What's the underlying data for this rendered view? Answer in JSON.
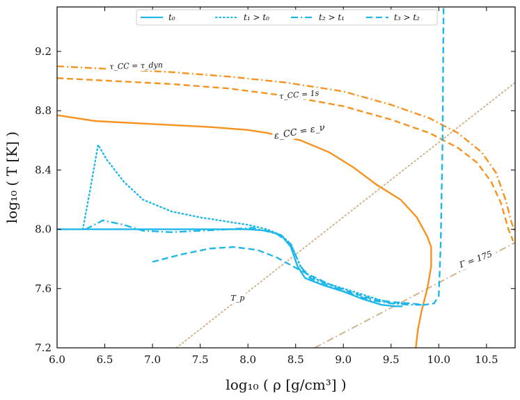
{
  "chart_data": {
    "type": "line",
    "title": "",
    "xlabel": "log₁₀ ( ρ [g/cm³] )",
    "ylabel": "log₁₀ ( T [K] )",
    "xlim": [
      6.0,
      10.8
    ],
    "ylim": [
      7.2,
      9.5
    ],
    "xticks": [
      "6.0",
      "6.5",
      "7.0",
      "7.5",
      "8.0",
      "8.5",
      "9.0",
      "9.5",
      "10.0",
      "10.5"
    ],
    "yticks": [
      "7.2",
      "7.6",
      "8.0",
      "8.4",
      "8.8",
      "9.2"
    ],
    "legend_position": "top",
    "colors": {
      "profile": "#1fb7ea",
      "orange": "#f7921e",
      "tan": "#d2b48c",
      "frame": "#000000"
    },
    "series": [
      {
        "name": "t₀",
        "style": "solid",
        "color": "#1fb7ea",
        "points": [
          [
            6.0,
            8.0
          ],
          [
            6.5,
            8.0
          ],
          [
            7.0,
            8.0
          ],
          [
            7.5,
            8.0
          ],
          [
            7.8,
            8.0
          ],
          [
            8.0,
            8.0
          ],
          [
            8.2,
            7.99
          ],
          [
            8.35,
            7.96
          ],
          [
            8.45,
            7.88
          ],
          [
            8.52,
            7.75
          ],
          [
            8.6,
            7.67
          ],
          [
            8.8,
            7.62
          ],
          [
            9.0,
            7.58
          ],
          [
            9.2,
            7.53
          ],
          [
            9.4,
            7.49
          ],
          [
            9.55,
            7.48
          ],
          [
            9.62,
            7.48
          ]
        ]
      },
      {
        "name": "t₁ > t₀",
        "style": "dotted",
        "color": "#1fb7ea",
        "points": [
          [
            6.27,
            8.0
          ],
          [
            6.35,
            8.28
          ],
          [
            6.43,
            8.57
          ],
          [
            6.52,
            8.47
          ],
          [
            6.7,
            8.32
          ],
          [
            6.9,
            8.2
          ],
          [
            7.2,
            8.12
          ],
          [
            7.5,
            8.08
          ],
          [
            7.8,
            8.05
          ],
          [
            8.0,
            8.03
          ],
          [
            8.2,
            8.0
          ],
          [
            8.35,
            7.96
          ],
          [
            8.45,
            7.9
          ],
          [
            8.55,
            7.75
          ],
          [
            8.65,
            7.68
          ],
          [
            8.85,
            7.63
          ],
          [
            9.1,
            7.58
          ],
          [
            9.3,
            7.54
          ],
          [
            9.5,
            7.5
          ],
          [
            9.65,
            7.5
          ]
        ]
      },
      {
        "name": "t₂ > t₁",
        "style": "dashdot",
        "color": "#1fb7ea",
        "points": [
          [
            6.3,
            8.0
          ],
          [
            6.48,
            8.06
          ],
          [
            6.7,
            8.03
          ],
          [
            6.9,
            7.99
          ],
          [
            7.2,
            7.98
          ],
          [
            7.5,
            7.99
          ],
          [
            7.8,
            8.0
          ],
          [
            8.05,
            8.01
          ],
          [
            8.3,
            7.97
          ],
          [
            8.45,
            7.9
          ],
          [
            8.55,
            7.75
          ],
          [
            8.65,
            7.67
          ],
          [
            8.85,
            7.62
          ],
          [
            9.1,
            7.56
          ],
          [
            9.3,
            7.52
          ],
          [
            9.5,
            7.5
          ],
          [
            9.7,
            7.49
          ],
          [
            9.82,
            7.49
          ]
        ]
      },
      {
        "name": "t₃ > t₂",
        "style": "dashed",
        "color": "#1fb7ea",
        "points": [
          [
            7.0,
            7.78
          ],
          [
            7.3,
            7.83
          ],
          [
            7.6,
            7.87
          ],
          [
            7.85,
            7.88
          ],
          [
            8.1,
            7.86
          ],
          [
            8.3,
            7.81
          ],
          [
            8.5,
            7.74
          ],
          [
            8.65,
            7.69
          ],
          [
            8.85,
            7.63
          ],
          [
            9.1,
            7.57
          ],
          [
            9.3,
            7.53
          ],
          [
            9.5,
            7.51
          ],
          [
            9.7,
            7.5
          ],
          [
            9.85,
            7.49
          ],
          [
            9.95,
            7.5
          ],
          [
            10.0,
            7.55
          ],
          [
            10.02,
            7.9
          ],
          [
            10.04,
            8.6
          ],
          [
            10.05,
            9.5
          ]
        ]
      },
      {
        "name": "τ_CC = τ_dyn",
        "style": "dashdot",
        "color": "#f7921e",
        "points": [
          [
            6.0,
            9.1
          ],
          [
            6.6,
            9.08
          ],
          [
            7.2,
            9.06
          ],
          [
            7.8,
            9.03
          ],
          [
            8.4,
            8.99
          ],
          [
            9.0,
            8.93
          ],
          [
            9.5,
            8.84
          ],
          [
            9.9,
            8.75
          ],
          [
            10.2,
            8.65
          ],
          [
            10.45,
            8.52
          ],
          [
            10.6,
            8.38
          ],
          [
            10.7,
            8.2
          ],
          [
            10.76,
            8.05
          ],
          [
            10.8,
            7.98
          ]
        ]
      },
      {
        "name": "τ_CC = 1s",
        "style": "dashed",
        "color": "#f7921e",
        "points": [
          [
            6.0,
            9.02
          ],
          [
            6.6,
            9.0
          ],
          [
            7.2,
            8.98
          ],
          [
            7.8,
            8.95
          ],
          [
            8.4,
            8.9
          ],
          [
            9.0,
            8.83
          ],
          [
            9.5,
            8.74
          ],
          [
            9.9,
            8.65
          ],
          [
            10.2,
            8.55
          ],
          [
            10.4,
            8.45
          ],
          [
            10.55,
            8.32
          ],
          [
            10.65,
            8.18
          ],
          [
            10.73,
            8.0
          ],
          [
            10.78,
            7.92
          ]
        ]
      },
      {
        "name": "ε_CC = ε_ν",
        "style": "solid",
        "color": "#f7921e",
        "points": [
          [
            6.0,
            8.77
          ],
          [
            6.4,
            8.73
          ],
          [
            7.0,
            8.71
          ],
          [
            7.6,
            8.69
          ],
          [
            8.0,
            8.67
          ],
          [
            8.2,
            8.65
          ],
          [
            8.55,
            8.6
          ],
          [
            8.85,
            8.52
          ],
          [
            9.1,
            8.42
          ],
          [
            9.35,
            8.3
          ],
          [
            9.6,
            8.2
          ],
          [
            9.77,
            8.08
          ],
          [
            9.88,
            7.95
          ],
          [
            9.92,
            7.88
          ],
          [
            9.92,
            7.75
          ],
          [
            9.88,
            7.6
          ],
          [
            9.82,
            7.45
          ],
          [
            9.78,
            7.32
          ],
          [
            9.76,
            7.2
          ]
        ]
      },
      {
        "name": "T_p",
        "style": "dotted",
        "color": "#d2b48c",
        "points": [
          [
            7.25,
            7.2
          ],
          [
            10.8,
            8.99
          ]
        ]
      },
      {
        "name": "Γ = 175",
        "style": "dashdot",
        "color": "#d2b48c",
        "points": [
          [
            8.7,
            7.2
          ],
          [
            10.8,
            7.91
          ]
        ]
      }
    ],
    "legend": [
      "t₀",
      "t₁ > t₀",
      "t₂ > t₁",
      "t₃ > t₂"
    ],
    "annotations": [
      {
        "text": "τ_CC = τ_dyn",
        "x": 6.55,
        "y": 9.08,
        "angle": -2
      },
      {
        "text": "τ_CC = 1s",
        "x": 8.33,
        "y": 8.88,
        "angle": -5
      },
      {
        "text": "ε_CC = ε_ν",
        "x": 8.28,
        "y": 8.61,
        "angle": -10
      },
      {
        "text": "T_p",
        "x": 7.82,
        "y": 7.52,
        "angle": 0
      },
      {
        "text": "Γ = 175",
        "x": 10.23,
        "y": 7.74,
        "angle": -20
      }
    ]
  }
}
